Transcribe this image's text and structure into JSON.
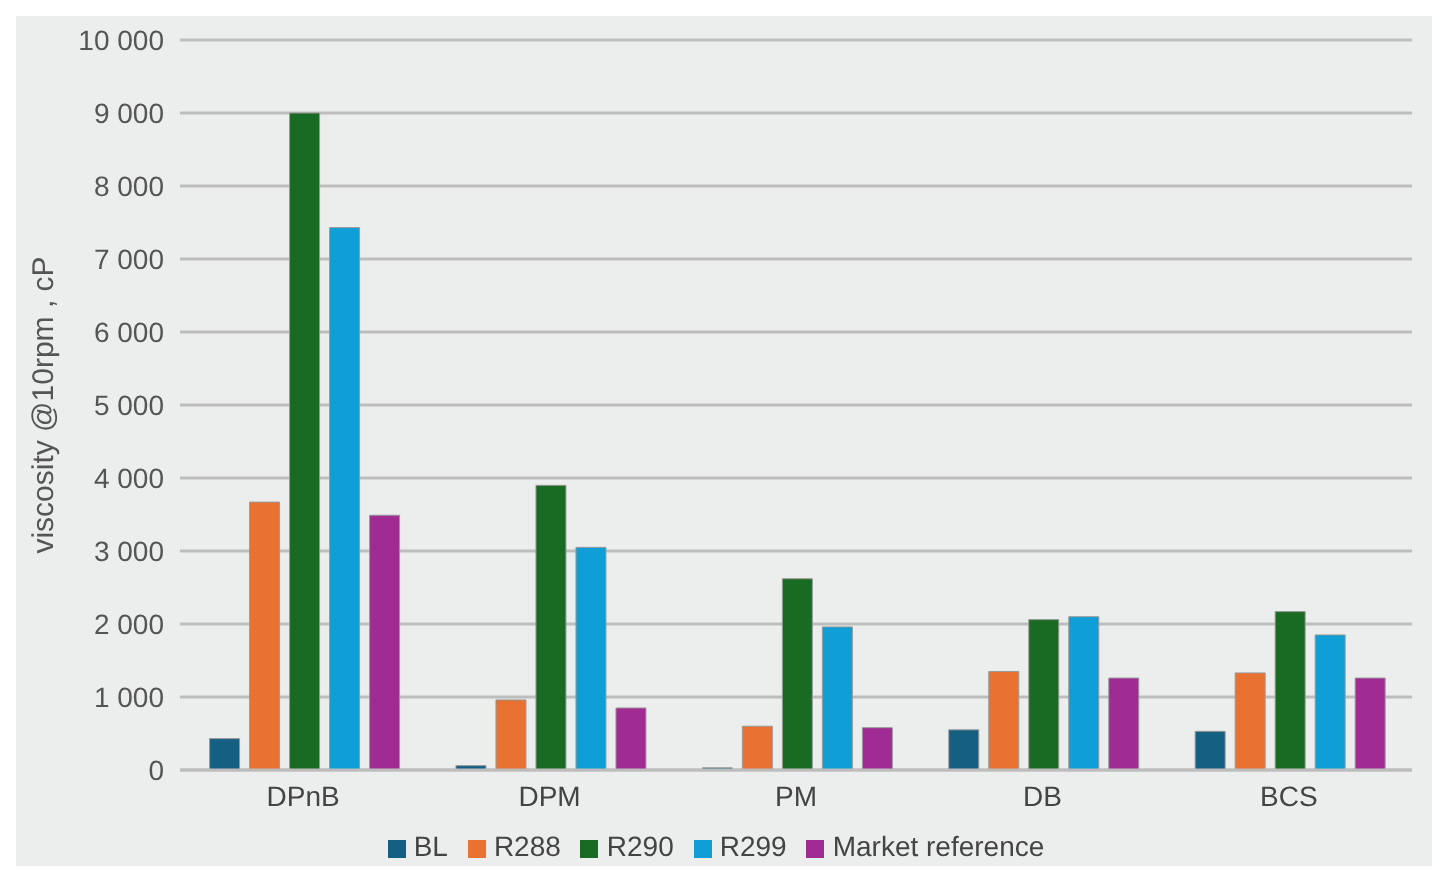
{
  "chart_data": {
    "type": "bar",
    "ylabel": "viscosity @10rpm , cP",
    "categories": [
      "DPnB",
      "DPM",
      "PM",
      "DB",
      "BCS"
    ],
    "series": [
      {
        "name": "BL",
        "color": "#155f82",
        "values": [
          430,
          60,
          30,
          550,
          530
        ]
      },
      {
        "name": "R288",
        "color": "#e97132",
        "values": [
          3670,
          960,
          600,
          1350,
          1330
        ]
      },
      {
        "name": "R290",
        "color": "#196b24",
        "values": [
          9000,
          3900,
          2620,
          2060,
          2170
        ]
      },
      {
        "name": "R299",
        "color": "#0f9ed5",
        "values": [
          7430,
          3050,
          1960,
          2100,
          1850
        ]
      },
      {
        "name": "Market reference",
        "color": "#a02b93",
        "values": [
          3490,
          850,
          580,
          1260,
          1260
        ]
      }
    ],
    "ylim": [
      0,
      10000
    ],
    "yticks": [
      0,
      {
        "value": 1000,
        "label": "1 000"
      },
      {
        "value": 2000,
        "label": "2 000"
      },
      {
        "value": 3000,
        "label": "3 000"
      },
      {
        "value": 4000,
        "label": "4 000"
      },
      {
        "value": 5000,
        "label": "5 000"
      },
      {
        "value": 6000,
        "label": "6 000"
      },
      {
        "value": 7000,
        "label": "7 000"
      },
      {
        "value": 8000,
        "label": "8 000"
      },
      {
        "value": 9000,
        "label": "9 000"
      },
      {
        "value": 10000,
        "label": "10 000"
      }
    ],
    "grid": "y",
    "legend": "bottom"
  }
}
